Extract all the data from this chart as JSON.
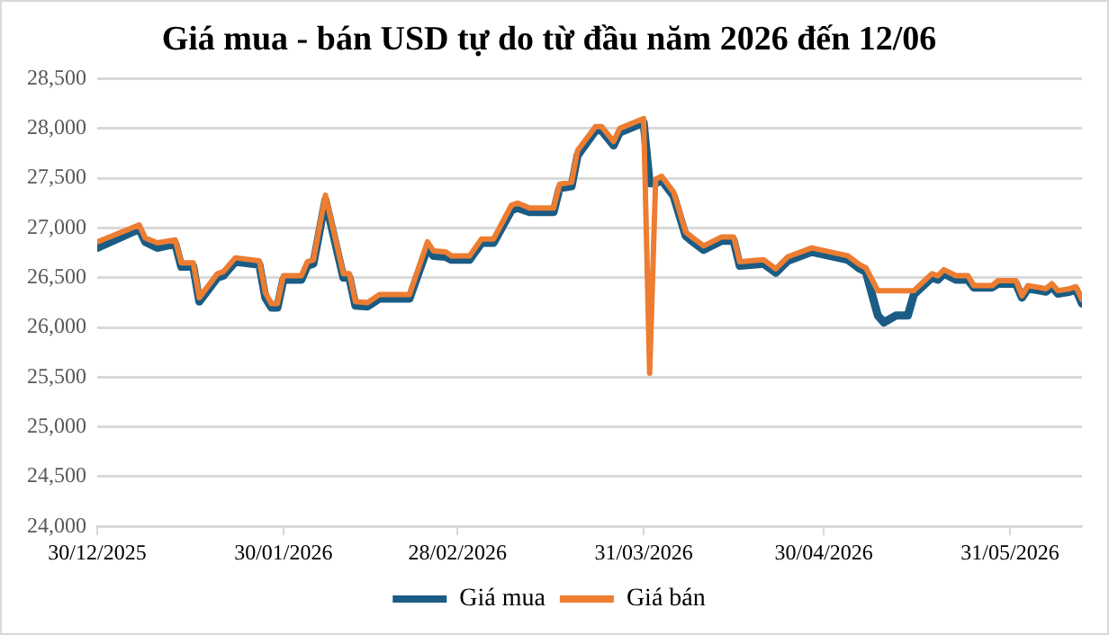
{
  "chart_data": {
    "type": "line",
    "title": "Giá mua - bán USD tự do từ đầu năm 2026 đến 12/06",
    "x": [
      "2025-12-30",
      "2026-01-06",
      "2026-01-07",
      "2026-01-09",
      "2026-01-12",
      "2026-01-13",
      "2026-01-15",
      "2026-01-16",
      "2026-01-19",
      "2026-01-20",
      "2026-01-22",
      "2026-01-26",
      "2026-01-27",
      "2026-01-28",
      "2026-01-29",
      "2026-01-30",
      "2026-02-02",
      "2026-02-03",
      "2026-02-04",
      "2026-02-06",
      "2026-02-09",
      "2026-02-10",
      "2026-02-11",
      "2026-02-13",
      "2026-02-15",
      "2026-02-20",
      "2026-02-23",
      "2026-02-24",
      "2026-02-26",
      "2026-02-27",
      "2026-03-02",
      "2026-03-04",
      "2026-03-06",
      "2026-03-09",
      "2026-03-10",
      "2026-03-12",
      "2026-03-16",
      "2026-03-17",
      "2026-03-19",
      "2026-03-20",
      "2026-03-23",
      "2026-03-24",
      "2026-03-26",
      "2026-03-27",
      "2026-03-31",
      "2026-04-01",
      "2026-04-02",
      "2026-04-03",
      "2026-04-05",
      "2026-04-07",
      "2026-04-08",
      "2026-04-10",
      "2026-04-13",
      "2026-04-15",
      "2026-04-16",
      "2026-04-20",
      "2026-04-22",
      "2026-04-24",
      "2026-04-28",
      "2026-05-04",
      "2026-05-06",
      "2026-05-07",
      "2026-05-09",
      "2026-05-10",
      "2026-05-12",
      "2026-05-14",
      "2026-05-15",
      "2026-05-18",
      "2026-05-19",
      "2026-05-20",
      "2026-05-22",
      "2026-05-24",
      "2026-05-25",
      "2026-05-28",
      "2026-05-29",
      "2026-06-01",
      "2026-06-02",
      "2026-06-03",
      "2026-06-05",
      "2026-06-06",
      "2026-06-07",
      "2026-06-08",
      "2026-06-10",
      "2026-06-11",
      "2026-06-12"
    ],
    "series": [
      {
        "name": "Giá mua",
        "color": "#1a5c84",
        "values": [
          26800,
          26990,
          26860,
          26800,
          26840,
          26610,
          26610,
          26260,
          26500,
          26520,
          26660,
          26630,
          26300,
          26200,
          26200,
          26480,
          26480,
          26620,
          26640,
          27280,
          26500,
          26500,
          26220,
          26210,
          26290,
          26290,
          26800,
          26720,
          26710,
          26680,
          26680,
          26850,
          26850,
          27180,
          27200,
          27160,
          27160,
          27400,
          27420,
          27730,
          27980,
          27980,
          27830,
          27960,
          28060,
          27450,
          27450,
          27480,
          27320,
          26920,
          26870,
          26780,
          26870,
          26870,
          26620,
          26640,
          26550,
          26670,
          26760,
          26680,
          26590,
          26560,
          26120,
          26050,
          26120,
          26120,
          26330,
          26500,
          26480,
          26540,
          26480,
          26480,
          26400,
          26400,
          26440,
          26440,
          26300,
          26390,
          26370,
          26360,
          26410,
          26340,
          26360,
          26380,
          26240
        ]
      },
      {
        "name": "Giá bán",
        "color": "#ed7d31",
        "values": [
          26860,
          27030,
          26900,
          26850,
          26880,
          26650,
          26650,
          26300,
          26540,
          26560,
          26700,
          26670,
          26350,
          26240,
          26240,
          26520,
          26520,
          26660,
          26680,
          27330,
          26540,
          26540,
          26260,
          26250,
          26330,
          26330,
          26860,
          26770,
          26760,
          26720,
          26720,
          26890,
          26890,
          27230,
          27250,
          27200,
          27200,
          27440,
          27460,
          27780,
          28020,
          28020,
          27870,
          28000,
          28100,
          25540,
          27490,
          27520,
          27360,
          26960,
          26910,
          26820,
          26910,
          26910,
          26660,
          26680,
          26590,
          26710,
          26800,
          26720,
          26630,
          26600,
          26370,
          26370,
          26370,
          26370,
          26370,
          26540,
          26520,
          26580,
          26520,
          26520,
          26420,
          26420,
          26470,
          26470,
          26320,
          26420,
          26400,
          26390,
          26440,
          26370,
          26390,
          26410,
          26280
        ]
      }
    ],
    "xlim": [
      "2025-12-30",
      "2026-06-12"
    ],
    "xticks": [
      {
        "value": "2025-12-30",
        "label": "30/12/2025"
      },
      {
        "value": "2026-01-30",
        "label": "30/01/2026"
      },
      {
        "value": "2026-02-28",
        "label": "28/02/2026"
      },
      {
        "value": "2026-03-31",
        "label": "31/03/2026"
      },
      {
        "value": "2026-04-30",
        "label": "30/04/2026"
      },
      {
        "value": "2026-05-31",
        "label": "31/05/2026"
      }
    ],
    "ylim": [
      24000,
      28500
    ],
    "yticks": [
      {
        "value": 24000,
        "label": "24,000"
      },
      {
        "value": 24500,
        "label": "24,500"
      },
      {
        "value": 25000,
        "label": "25,000"
      },
      {
        "value": 25500,
        "label": "25,500"
      },
      {
        "value": 26000,
        "label": "26,000"
      },
      {
        "value": 26500,
        "label": "26,500"
      },
      {
        "value": 27000,
        "label": "27,000"
      },
      {
        "value": 27500,
        "label": "27,500"
      },
      {
        "value": 28000,
        "label": "28,000"
      },
      {
        "value": 28500,
        "label": "28,500"
      }
    ],
    "grid": "y",
    "legend": "bottom",
    "marker": "none",
    "line_style": "solid"
  }
}
